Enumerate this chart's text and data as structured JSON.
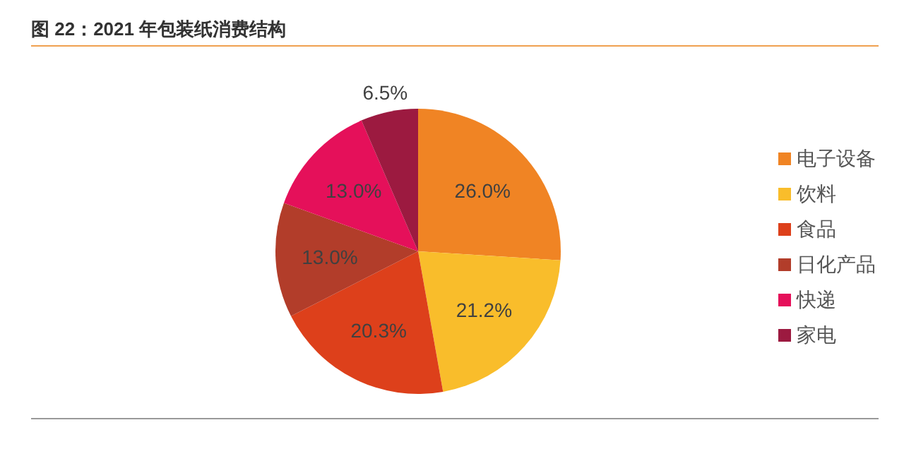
{
  "chart_data": {
    "type": "pie",
    "title": "图 22：2021 年包装纸消费结构",
    "categories": [
      "电子设备",
      "饮料",
      "食品",
      "日化产品",
      "快递",
      "家电"
    ],
    "values": [
      26.0,
      21.2,
      20.3,
      13.0,
      13.0,
      6.5
    ],
    "value_labels": [
      "26.0%",
      "21.2%",
      "20.3%",
      "13.0%",
      "13.0%",
      "6.5%"
    ],
    "colors": [
      "#f08424",
      "#f9bd2b",
      "#dd401b",
      "#b23d2a",
      "#e5105a",
      "#9c1a40"
    ],
    "legend": "right"
  }
}
